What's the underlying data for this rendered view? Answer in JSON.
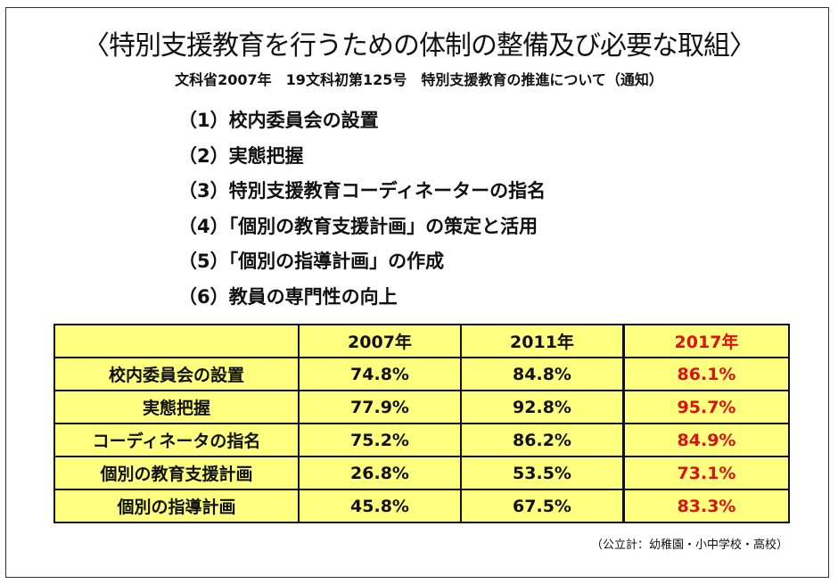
{
  "title": "〈特別支援教育を行うための体制の整備及び必要な取組〉",
  "subtitle": "文科省2007年　19文科初第125号　特別支援教育の推進について（通知）",
  "items": [
    "（1）校内委員会の設置",
    "（2）実態把握",
    "（3）特別支援教育コーディネーターの指名",
    "（4）「個別の教育支援計画」の策定と活用",
    "（5）「個別の指導計画」の作成",
    "（6）教員の専門性の向上"
  ],
  "table": {
    "headers": [
      "",
      "2007年",
      "2011年",
      "2017年"
    ],
    "rows": [
      [
        "校内委員会の設置",
        "74.8%",
        "84.8%",
        "86.1%"
      ],
      [
        "実態把握",
        "77.9%",
        "92.8%",
        "95.7%"
      ],
      [
        "コーディネータの指名",
        "75.2%",
        "86.2%",
        "84.9%"
      ],
      [
        "個別の教育支援計画",
        "26.8%",
        "53.5%",
        "73.1%"
      ],
      [
        "個別の指導計画",
        "45.8%",
        "67.5%",
        "83.3%"
      ]
    ]
  },
  "note": "（公立計：幼稚園・小中学校・高校）",
  "colors": {
    "table_bg": "#ffff80",
    "highlight": "#e01010"
  }
}
